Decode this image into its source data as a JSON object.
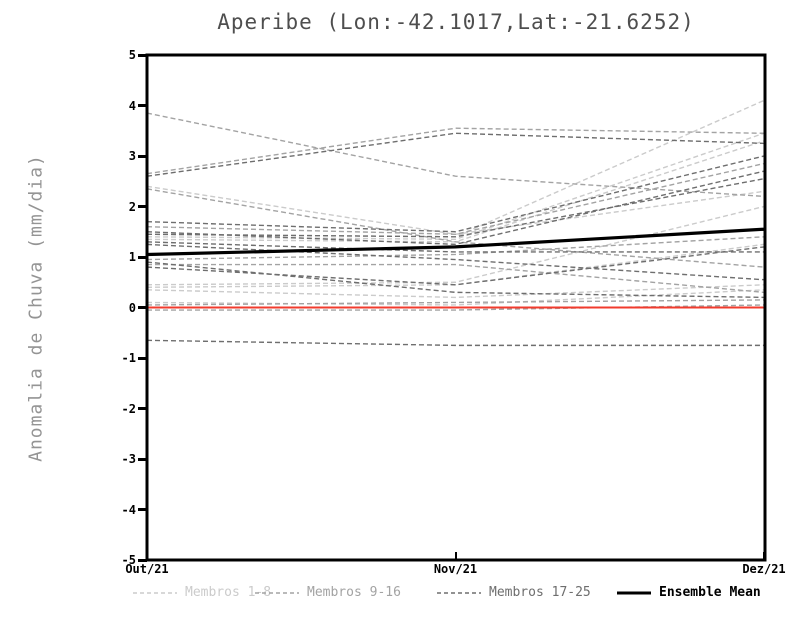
{
  "title": "Aperibe (Lon:-42.1017,Lat:-21.6252)",
  "y_axis": {
    "label": "Anomalia de Chuva (mm/dia)",
    "min": -5,
    "max": 5,
    "tick_step": 1,
    "tick_labels": [
      "5",
      "4",
      "3",
      "2",
      "1",
      "0",
      "-1",
      "-2",
      "-3",
      "-4",
      "-5"
    ]
  },
  "x_axis": {
    "tick_labels": [
      "Out/21",
      "Nov/21",
      "Dez/21"
    ]
  },
  "legend": [
    {
      "label": "Membros 1-8",
      "color_key": "members_1_8",
      "style": "dashed"
    },
    {
      "label": "Membros 9-16",
      "color_key": "members_9_16",
      "style": "dashed"
    },
    {
      "label": "Membros 17-25",
      "color_key": "members_17_25",
      "style": "dashed"
    },
    {
      "label": "Ensemble Mean",
      "color_key": "ensemble_mean",
      "style": "solid"
    }
  ],
  "colors": {
    "members_1_8": "#cbcbcb",
    "members_9_16": "#a3a3a3",
    "members_17_25": "#6e6e6e",
    "ensemble_mean": "#000000",
    "zero_line": "#f23b2d",
    "axis": "#000000"
  },
  "chart_data": {
    "type": "line",
    "title": "Aperibe (Lon:-42.1017,Lat:-21.6252)",
    "xlabel": "",
    "ylabel": "Anomalia de Chuva (mm/dia)",
    "x_categories": [
      "Out/21",
      "Nov/21",
      "Dez/21"
    ],
    "ylim": [
      -5,
      5
    ],
    "grid": false,
    "legend_position": "bottom",
    "line_style_members": "dashed",
    "series": [
      {
        "name": "Membro 1",
        "group": "members_1_8",
        "values": [
          2.4,
          1.45,
          2.3
        ]
      },
      {
        "name": "Membro 2",
        "group": "members_1_8",
        "values": [
          1.45,
          1.4,
          4.1
        ]
      },
      {
        "name": "Membro 3",
        "group": "members_1_8",
        "values": [
          1.4,
          1.35,
          3.45
        ]
      },
      {
        "name": "Membro 4",
        "group": "members_1_8",
        "values": [
          1.35,
          1.3,
          3.3
        ]
      },
      {
        "name": "Membro 5",
        "group": "members_1_8",
        "values": [
          0.45,
          0.5,
          2.0
        ]
      },
      {
        "name": "Membro 6",
        "group": "members_1_8",
        "values": [
          0.4,
          0.45,
          1.25
        ]
      },
      {
        "name": "Membro 7",
        "group": "members_1_8",
        "values": [
          0.35,
          0.2,
          0.45
        ]
      },
      {
        "name": "Membro 8",
        "group": "members_1_8",
        "values": [
          0.1,
          0.05,
          0.35
        ]
      },
      {
        "name": "Membro 9",
        "group": "members_9_16",
        "values": [
          3.85,
          2.6,
          2.2
        ]
      },
      {
        "name": "Membro 10",
        "group": "members_9_16",
        "values": [
          2.65,
          3.55,
          3.45
        ]
      },
      {
        "name": "Membro 11",
        "group": "members_9_16",
        "values": [
          2.35,
          1.3,
          0.8
        ]
      },
      {
        "name": "Membro 12",
        "group": "members_9_16",
        "values": [
          1.6,
          1.45,
          2.85
        ]
      },
      {
        "name": "Membro 13",
        "group": "members_9_16",
        "values": [
          0.95,
          1.05,
          1.4
        ]
      },
      {
        "name": "Membro 14",
        "group": "members_9_16",
        "values": [
          0.85,
          0.85,
          0.3
        ]
      },
      {
        "name": "Membro 15",
        "group": "members_9_16",
        "values": [
          0.05,
          0.1,
          0.15
        ]
      },
      {
        "name": "Membro 16",
        "group": "members_9_16",
        "values": [
          -0.05,
          -0.05,
          0.05
        ]
      },
      {
        "name": "Membro 17",
        "group": "members_17_25",
        "values": [
          2.6,
          3.45,
          3.25
        ]
      },
      {
        "name": "Membro 18",
        "group": "members_17_25",
        "values": [
          1.7,
          1.5,
          3.0
        ]
      },
      {
        "name": "Membro 19",
        "group": "members_17_25",
        "values": [
          1.5,
          1.25,
          2.7
        ]
      },
      {
        "name": "Membro 20",
        "group": "members_17_25",
        "values": [
          1.3,
          1.1,
          1.1
        ]
      },
      {
        "name": "Membro 21",
        "group": "members_17_25",
        "values": [
          1.25,
          0.95,
          0.55
        ]
      },
      {
        "name": "Membro 22",
        "group": "members_17_25",
        "values": [
          0.9,
          0.3,
          0.2
        ]
      },
      {
        "name": "Membro 23",
        "group": "members_17_25",
        "values": [
          0.8,
          0.45,
          1.2
        ]
      },
      {
        "name": "Membro 24",
        "group": "members_17_25",
        "values": [
          -0.65,
          -0.75,
          -0.75
        ]
      },
      {
        "name": "Membro 25",
        "group": "members_17_25",
        "values": [
          1.45,
          1.4,
          2.55
        ]
      }
    ],
    "ensemble_mean": {
      "name": "Ensemble Mean",
      "values": [
        1.05,
        1.2,
        1.55
      ]
    },
    "zero_line": {
      "value": 0
    }
  }
}
